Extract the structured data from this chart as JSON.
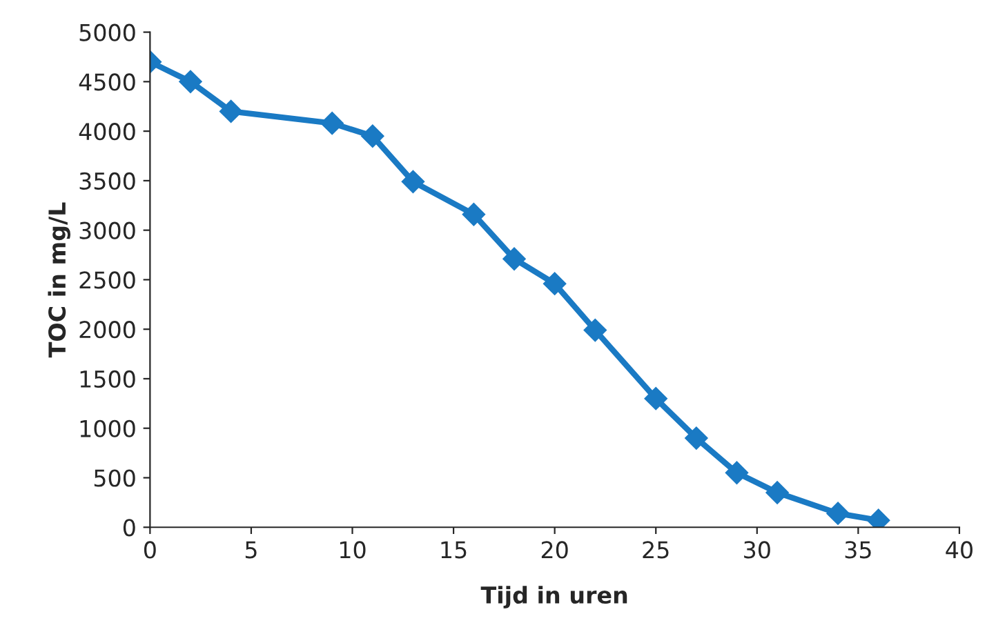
{
  "chart_data": {
    "type": "line",
    "xlabel": "Tijd in uren",
    "ylabel": "TOC in mg/L",
    "x": [
      0,
      2,
      4,
      9,
      11,
      13,
      16,
      18,
      20,
      22,
      25,
      27,
      29,
      31,
      34,
      36
    ],
    "series": [
      {
        "color": "#1a7ac4",
        "values": [
          4700,
          4500,
          4200,
          4080,
          3950,
          3490,
          3160,
          2710,
          2460,
          1990,
          1300,
          900,
          550,
          350,
          140,
          70
        ]
      }
    ],
    "xlim": [
      0,
      40
    ],
    "xticks": [
      0,
      5,
      10,
      15,
      20,
      25,
      30,
      35,
      40
    ],
    "ylim": [
      0,
      5000
    ],
    "yticks": [
      0,
      500,
      1000,
      1500,
      2000,
      2500,
      3000,
      3500,
      4000,
      4500,
      5000
    ],
    "grid": false,
    "legend": false,
    "marker": "diamond",
    "line_style": "solid"
  }
}
